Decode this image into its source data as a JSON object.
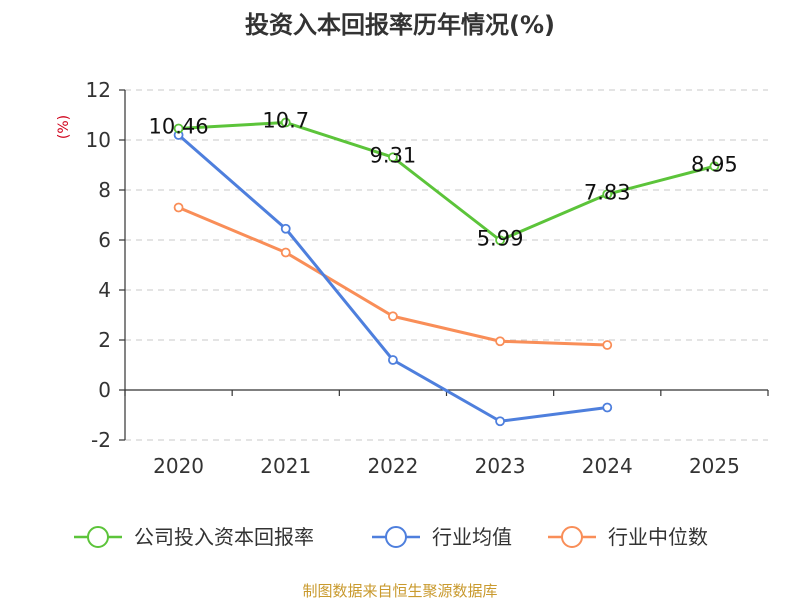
{
  "chart_data": {
    "type": "line",
    "title": "投资入本回报率历年情况(%)",
    "ylabel": "(%)",
    "xlabel": "",
    "categories": [
      "2020",
      "2021",
      "2022",
      "2023",
      "2024",
      "2025"
    ],
    "ylim": [
      -2,
      12
    ],
    "yticks": [
      -2,
      0,
      2,
      4,
      6,
      8,
      10,
      12
    ],
    "grid": true,
    "legend_position": "bottom",
    "series": [
      {
        "name": "公司投入资本回报率",
        "color": "#5cc43a",
        "values": [
          10.46,
          10.7,
          9.31,
          5.99,
          7.83,
          8.95
        ],
        "labels": [
          "10.46",
          "10.7",
          "9.31",
          "5.99",
          "7.83",
          "8.95"
        ]
      },
      {
        "name": "行业均值",
        "color": "#4e7fdd",
        "values": [
          10.2,
          6.45,
          1.2,
          -1.25,
          -0.7,
          null
        ]
      },
      {
        "name": "行业中位数",
        "color": "#f98e58",
        "values": [
          7.3,
          5.5,
          2.95,
          1.95,
          1.8,
          null
        ]
      }
    ]
  },
  "footer": {
    "source": "制图数据来自恒生聚源数据库",
    "source_color": "#c99a2e"
  },
  "ylabel_color": "#d0021b"
}
